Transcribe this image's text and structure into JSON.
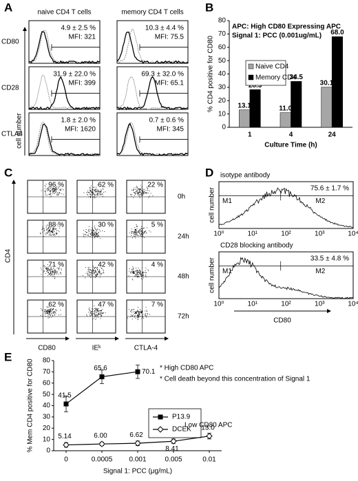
{
  "panel_labels": [
    "A",
    "B",
    "C",
    "D",
    "E"
  ],
  "panel_a": {
    "columns": [
      "naive CD4 T cells",
      "memory CD4 T cells"
    ],
    "rows": [
      "CD80",
      "CD28",
      "CTLA4"
    ],
    "axis_label": "cell number",
    "cells": [
      [
        {
          "percent": "4.9 ± 2.5 %",
          "mfi": "MFI: 321"
        },
        {
          "percent": "10.3 ± 4.4 %",
          "mfi": "MFI: 75.5"
        }
      ],
      [
        {
          "percent": "31.9 ± 22.0 %",
          "mfi": "MFI: 399"
        },
        {
          "percent": "69.3 ± 32.0 %",
          "mfi": "MFI: 65.1"
        }
      ],
      [
        {
          "percent": "1.8 ± 2.0 %",
          "mfi": "MFI: 1620"
        },
        {
          "percent": "0.7 ± 0.6 %",
          "mfi": "MFI: 345"
        }
      ]
    ]
  },
  "panel_c": {
    "x_labels": [
      "CD80",
      "IEᵏ",
      "CTLA-4"
    ],
    "y_label": "CD4",
    "times": [
      "0h",
      "24h",
      "48h",
      "72h"
    ],
    "percents": [
      [
        "96 %",
        "62 %",
        "22 %"
      ],
      [
        "88 %",
        "30 %",
        "5 %"
      ],
      [
        "71 %",
        "42 %",
        "4 %"
      ],
      [
        "62 %",
        "47 %",
        "7 %"
      ]
    ]
  },
  "panel_d": {
    "plots": [
      {
        "title": "isotype antibody",
        "percent": "75.6 ± 1.7 %"
      },
      {
        "title": "CD28 blocking antibody",
        "percent": "33.5 ± 4.8 %"
      }
    ],
    "gates": [
      "M1",
      "M2"
    ],
    "y_label": "cell number",
    "x_label": "CD80",
    "ticks": [
      "10⁰",
      "10¹",
      "10²",
      "10³",
      "10⁴"
    ]
  },
  "chart_data": [
    {
      "type": "bar",
      "annotations": [
        "APC:  High CD80 Expressing APC",
        "Signal 1:  PCC (0.001ug/mL)"
      ],
      "x_label": "Culture Time (h)",
      "y_label": "% CD4 positive for CD80",
      "categories": [
        "1",
        "4",
        "24"
      ],
      "series": [
        {
          "name": "Naive CD4",
          "color": "#a6a6a6",
          "values": [
            13.1,
            11.0,
            30.1
          ],
          "value_labels": [
            "13.1",
            "11.0",
            "30.1"
          ]
        },
        {
          "name": "Memory CD4",
          "color": "#000000",
          "values": [
            28.3,
            34.5,
            68.0
          ],
          "value_labels": [
            "28.3",
            "34.5",
            "68.0"
          ]
        }
      ],
      "ylim": [
        0,
        80
      ],
      "yticks": [
        0,
        10,
        20,
        30,
        40,
        50,
        60,
        70,
        80
      ]
    },
    {
      "type": "line",
      "annotations": [
        "* High CD80 APC",
        "* Cell death beyond this concentration of Signal 1",
        "Low CD80 APC"
      ],
      "x_label": "Signal 1: PCC (μg/mL)",
      "y_label": "% Mem CD4 positive for CD80",
      "categories": [
        "0",
        "0.0005",
        "0.001",
        "0.005",
        "0.01"
      ],
      "series": [
        {
          "name": "P13.9",
          "color": "#000000",
          "marker": "square",
          "values": [
            41.5,
            65.6,
            70.1,
            null,
            null
          ],
          "errors": [
            7,
            6,
            6,
            null,
            null
          ],
          "value_labels": [
            "41.5",
            "65.6",
            "70.1",
            null,
            null
          ]
        },
        {
          "name": "DCEK",
          "color": "#ffffff",
          "marker": "diamond",
          "values": [
            5.14,
            6.0,
            6.62,
            8.41,
            13.0
          ],
          "errors": [
            2,
            1.5,
            2,
            2,
            2.5
          ],
          "value_labels": [
            "5.14",
            "6.00",
            "6.62",
            "8.41",
            "13.0"
          ]
        }
      ],
      "ylim": [
        0,
        80
      ],
      "yticks": [
        0,
        10,
        20,
        30,
        40,
        50,
        60,
        70,
        80
      ]
    }
  ]
}
